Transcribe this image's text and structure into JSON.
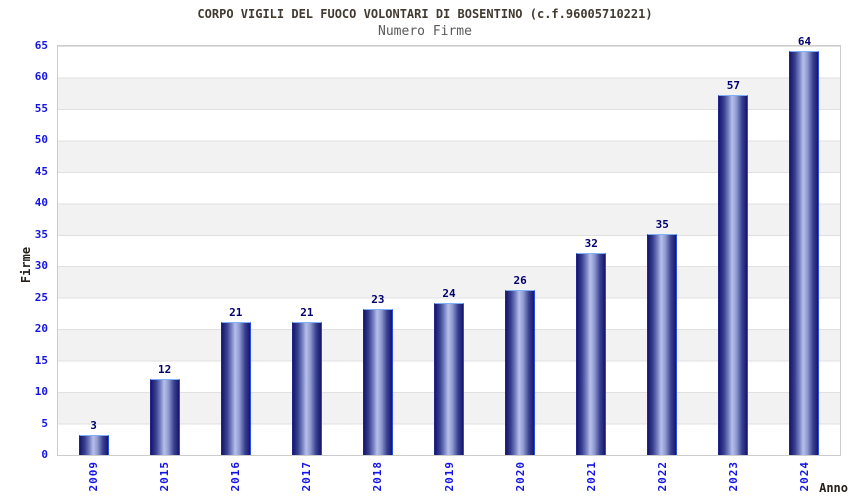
{
  "chart_data": {
    "type": "bar",
    "title": "CORPO VIGILI DEL FUOCO VOLONTARI DI BOSENTINO (c.f.96005710221)",
    "subtitle": "Numero Firme",
    "xlabel": "Anno",
    "ylabel": "Firme",
    "categories": [
      "2009",
      "2015",
      "2016",
      "2017",
      "2018",
      "2019",
      "2020",
      "2021",
      "2022",
      "2023",
      "2024"
    ],
    "values": [
      3,
      12,
      21,
      21,
      23,
      24,
      26,
      32,
      35,
      57,
      64
    ],
    "ylim": [
      0,
      65
    ],
    "ytick_step": 5,
    "grid": "horizontal-bands",
    "legend": "none",
    "colors": {
      "bar_dark": "#16166e",
      "bar_light": "#b7c0ea",
      "bar_border": "#6aa0f5",
      "tick": "#1414e6",
      "value": "#00006e",
      "title": "#423a30",
      "subtitle": "#5a5a5a",
      "axis": "#26201a",
      "band": "#f2f2f2",
      "grid": "#e0e0e0",
      "border": "#cccccc"
    }
  }
}
